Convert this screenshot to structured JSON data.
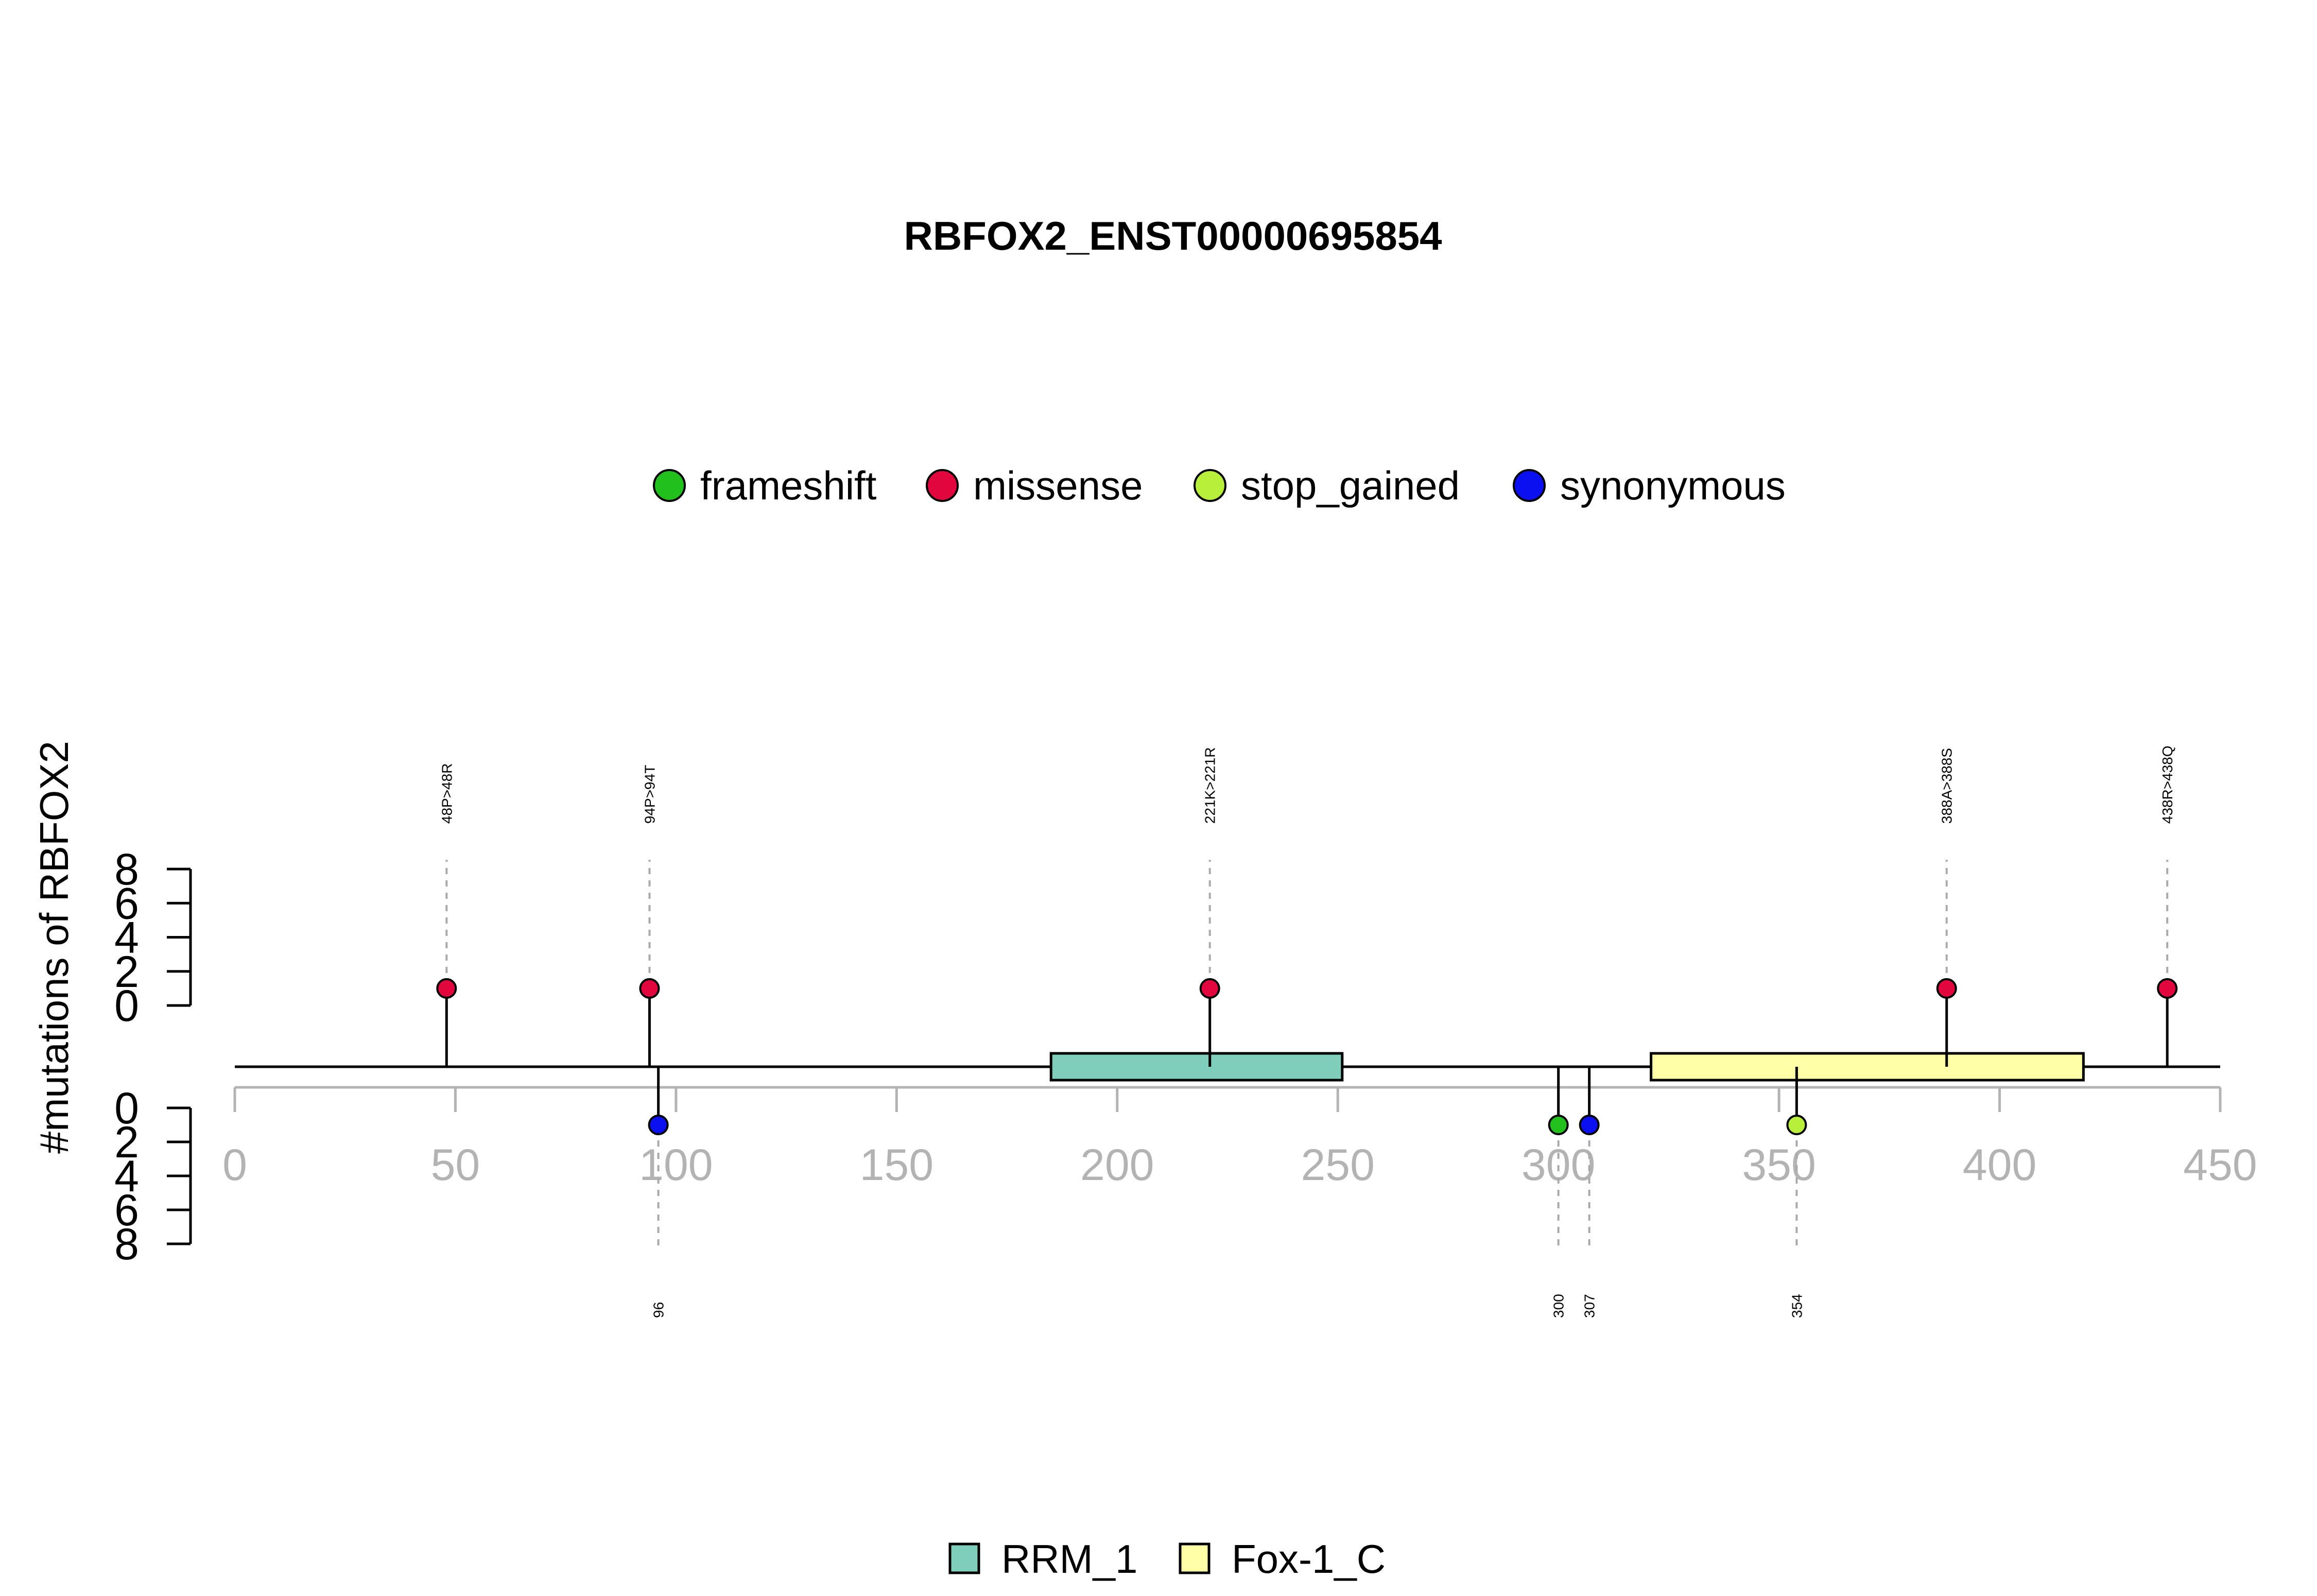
{
  "chart_data": {
    "type": "lollipop",
    "title": "RBFOX2_ENST00000695854",
    "ylabel": "#mutations of RBFOX2",
    "xlim": [
      0,
      450
    ],
    "x_ticks": [
      0,
      50,
      100,
      150,
      200,
      250,
      300,
      350,
      400,
      450
    ],
    "y_ticks_top": [
      0,
      2,
      4,
      6,
      8
    ],
    "y_ticks_bottom": [
      0,
      2,
      4,
      6,
      8
    ],
    "ylim": [
      0,
      8
    ],
    "mutation_legend": [
      {
        "name": "frameshift",
        "color": "#22c01c"
      },
      {
        "name": "missense",
        "color": "#e2063f"
      },
      {
        "name": "stop_gained",
        "color": "#b8ef3a"
      },
      {
        "name": "synonymous",
        "color": "#0a10f0"
      }
    ],
    "domain_legend": [
      {
        "name": "RRM_1",
        "color": "#7fcdbb"
      },
      {
        "name": "Fox-1_C",
        "color": "#ffffa8"
      }
    ],
    "domains": [
      {
        "name": "RRM_1",
        "start": 185,
        "end": 251,
        "color": "#7fcdbb"
      },
      {
        "name": "Fox-1_C",
        "start": 321,
        "end": 419,
        "color": "#ffffa8"
      }
    ],
    "mutations_top": [
      {
        "position": 48,
        "count": 1,
        "type": "missense",
        "label": "48P>48R"
      },
      {
        "position": 94,
        "count": 1,
        "type": "missense",
        "label": "94P>94T"
      },
      {
        "position": 221,
        "count": 1,
        "type": "missense",
        "label": "221K>221R"
      },
      {
        "position": 388,
        "count": 1,
        "type": "missense",
        "label": "388A>388S"
      },
      {
        "position": 438,
        "count": 1,
        "type": "missense",
        "label": "438R>438Q"
      }
    ],
    "mutations_bottom": [
      {
        "position": 96,
        "count": 1,
        "type": "synonymous",
        "label": "96"
      },
      {
        "position": 300,
        "count": 1,
        "type": "frameshift",
        "label": "300"
      },
      {
        "position": 307,
        "count": 1,
        "type": "synonymous",
        "label": "307"
      },
      {
        "position": 354,
        "count": 1,
        "type": "stop_gained",
        "label": "354"
      }
    ]
  }
}
